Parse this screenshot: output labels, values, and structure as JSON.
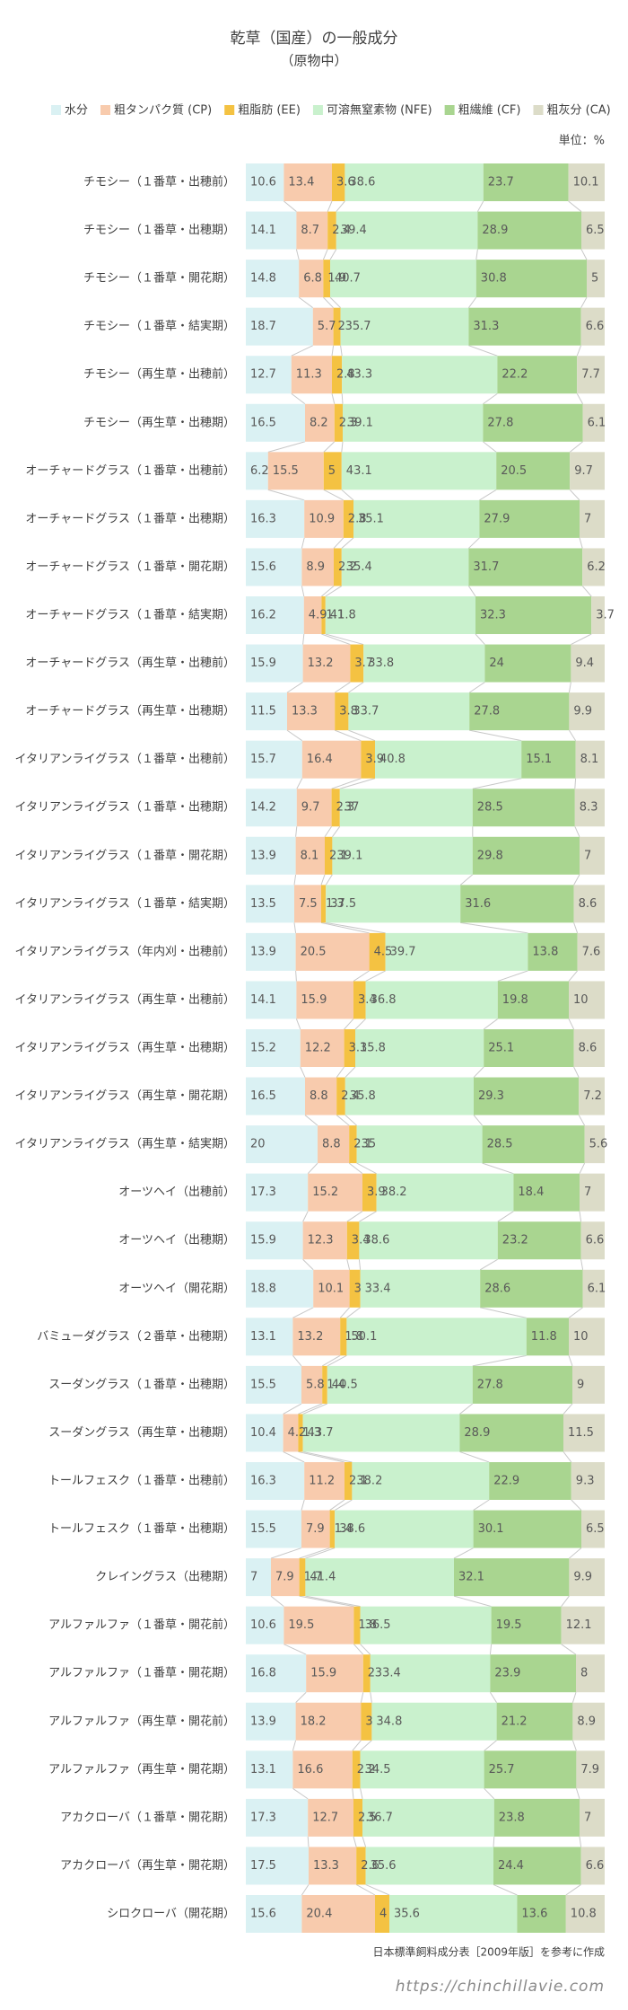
{
  "chart_data": {
    "type": "bar",
    "orientation": "horizontal",
    "stacked": true,
    "title": "乾草（国産）の一般成分",
    "subtitle": "（原物中）",
    "unit": "単位：%",
    "source": "日本標準飼料成分表［2009年版］を参考に作成",
    "watermark": "https://chinchillavie.com",
    "xlim": [
      0,
      100
    ],
    "categories": [
      "チモシー（１番草・出穂前）",
      "チモシー（１番草・出穂期）",
      "チモシー（１番草・開花期）",
      "チモシー（１番草・結実期）",
      "チモシー（再生草・出穂前）",
      "チモシー（再生草・出穂期）",
      "オーチャードグラス（１番草・出穂前）",
      "オーチャードグラス（１番草・出穂期）",
      "オーチャードグラス（１番草・開花期）",
      "オーチャードグラス（１番草・結実期）",
      "オーチャードグラス（再生草・出穂前）",
      "オーチャードグラス（再生草・出穂期）",
      "イタリアンライグラス（１番草・出穂前）",
      "イタリアンライグラス（１番草・出穂期）",
      "イタリアンライグラス（１番草・開花期）",
      "イタリアンライグラス（１番草・結実期）",
      "イタリアンライグラス（年内刈・出穂前）",
      "イタリアンライグラス（再生草・出穂前）",
      "イタリアンライグラス（再生草・出穂期）",
      "イタリアンライグラス（再生草・開花期）",
      "イタリアンライグラス（再生草・結実期）",
      "オーツヘイ（出穂前）",
      "オーツヘイ（出穂期）",
      "オーツヘイ（開花期）",
      "バミューダグラス（２番草・出穂期）",
      "スーダングラス（１番草・出穂期）",
      "スーダングラス（再生草・出穂期）",
      "トールフェスク（１番草・出穂前）",
      "トールフェスク（１番草・出穂期）",
      "クレイングラス（出穂期）",
      "アルファルファ（１番草・開花前）",
      "アルファルファ（１番草・開花期）",
      "アルファルファ（再生草・開花前）",
      "アルファルファ（再生草・開花期）",
      "アカクローバ（１番草・開花期）",
      "アカクローバ（再生草・開花期）",
      "シロクローバ（開花期）"
    ],
    "series": [
      {
        "name": "水分",
        "color": "#daf1f3",
        "values": [
          10.6,
          14.1,
          14.8,
          18.7,
          12.7,
          16.5,
          6.2,
          16.3,
          15.6,
          16.2,
          15.9,
          11.5,
          15.7,
          14.2,
          13.9,
          13.5,
          13.9,
          14.1,
          15.2,
          16.5,
          20.0,
          17.3,
          15.9,
          18.8,
          13.1,
          15.5,
          10.4,
          16.3,
          15.5,
          7.0,
          10.6,
          16.8,
          13.9,
          13.1,
          17.3,
          17.5,
          15.6
        ]
      },
      {
        "name": "粗タンパク質 (CP)",
        "color": "#f8cbad",
        "values": [
          13.4,
          8.7,
          6.8,
          5.7,
          11.3,
          8.2,
          15.5,
          10.9,
          8.9,
          4.9,
          13.2,
          13.3,
          16.4,
          9.7,
          8.1,
          7.5,
          20.5,
          15.9,
          12.2,
          8.8,
          8.8,
          15.2,
          12.3,
          10.1,
          13.2,
          5.8,
          4.2,
          11.2,
          7.9,
          7.9,
          19.5,
          15.9,
          18.2,
          16.6,
          12.7,
          13.3,
          20.4
        ]
      },
      {
        "name": "粗脂肪 (EE)",
        "color": "#f4c242",
        "values": [
          3.6,
          2.4,
          1.9,
          2.0,
          2.8,
          2.3,
          5.0,
          2.8,
          2.2,
          1.1,
          3.7,
          3.8,
          3.9,
          2.3,
          2.1,
          1.3,
          4.5,
          3.4,
          3.1,
          2.4,
          2.1,
          3.9,
          3.4,
          3.0,
          1.8,
          1.4,
          1.3,
          2.1,
          1.4,
          1.7,
          1.8,
          2.0,
          3.0,
          2.2,
          2.5,
          2.6,
          4.0
        ]
      },
      {
        "name": "可溶無窒素物 (NFE)",
        "color": "#c9f1cd",
        "values": [
          38.6,
          39.4,
          40.7,
          35.7,
          43.3,
          39.1,
          43.1,
          35.1,
          35.4,
          41.8,
          33.8,
          33.7,
          40.8,
          37.0,
          39.1,
          37.5,
          39.7,
          36.8,
          35.8,
          35.8,
          35.0,
          38.2,
          38.6,
          33.4,
          50.1,
          40.5,
          43.7,
          38.2,
          38.6,
          41.4,
          36.5,
          33.4,
          34.8,
          34.5,
          36.7,
          35.6,
          35.6
        ]
      },
      {
        "name": "粗繊維 (CF)",
        "color": "#a9d590",
        "values": [
          23.7,
          28.9,
          30.8,
          31.3,
          22.2,
          27.8,
          20.5,
          27.9,
          31.7,
          32.3,
          24.0,
          27.8,
          15.1,
          28.5,
          29.8,
          31.6,
          13.8,
          19.8,
          25.1,
          29.3,
          28.5,
          18.4,
          23.2,
          28.6,
          11.8,
          27.8,
          28.9,
          22.9,
          30.1,
          32.1,
          19.5,
          23.9,
          21.2,
          25.7,
          23.8,
          24.4,
          13.6
        ]
      },
      {
        "name": "粗灰分 (CA)",
        "color": "#dcdcc8",
        "values": [
          10.1,
          6.5,
          5.0,
          6.6,
          7.7,
          6.1,
          9.7,
          7.0,
          6.2,
          3.7,
          9.4,
          9.9,
          8.1,
          8.3,
          7.0,
          8.6,
          7.6,
          10.0,
          8.6,
          7.2,
          5.6,
          7.0,
          6.6,
          6.1,
          10.0,
          9.0,
          11.5,
          9.3,
          6.5,
          9.9,
          12.1,
          8.0,
          8.9,
          7.9,
          7.0,
          6.6,
          10.8
        ]
      }
    ]
  }
}
